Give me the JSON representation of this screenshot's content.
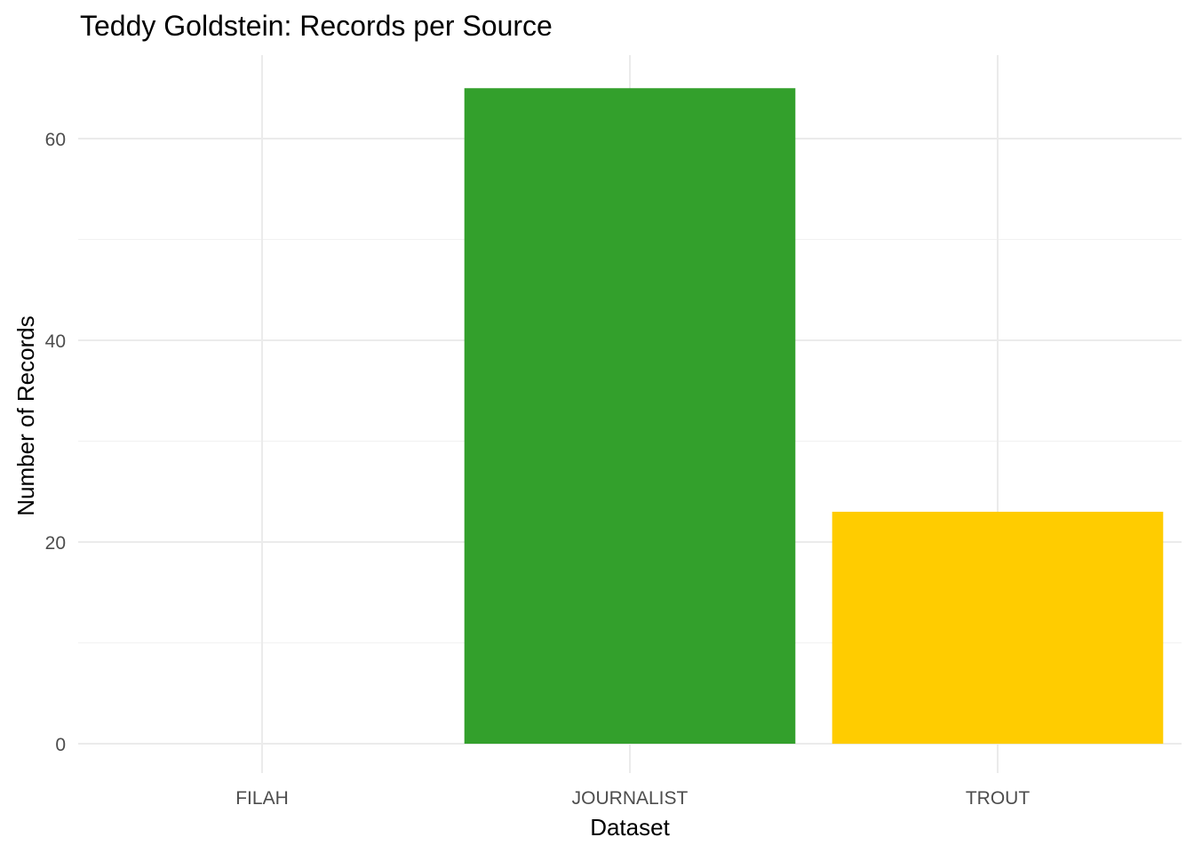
{
  "chart_data": {
    "type": "bar",
    "title": "Teddy Goldstein: Records per Source",
    "xlabel": "Dataset",
    "ylabel": "Number of Records",
    "categories": [
      "FILAH",
      "JOURNALIST",
      "TROUT"
    ],
    "values": [
      0,
      65,
      23
    ],
    "colors": [
      "#33a02c",
      "#33a02c",
      "#ffcc00"
    ],
    "ylim": [
      0,
      68.25
    ],
    "yticks": [
      0,
      20,
      40,
      60
    ],
    "yminor": [
      10,
      30,
      50
    ],
    "grid": true,
    "legend": "none",
    "background": "#ffffff"
  }
}
